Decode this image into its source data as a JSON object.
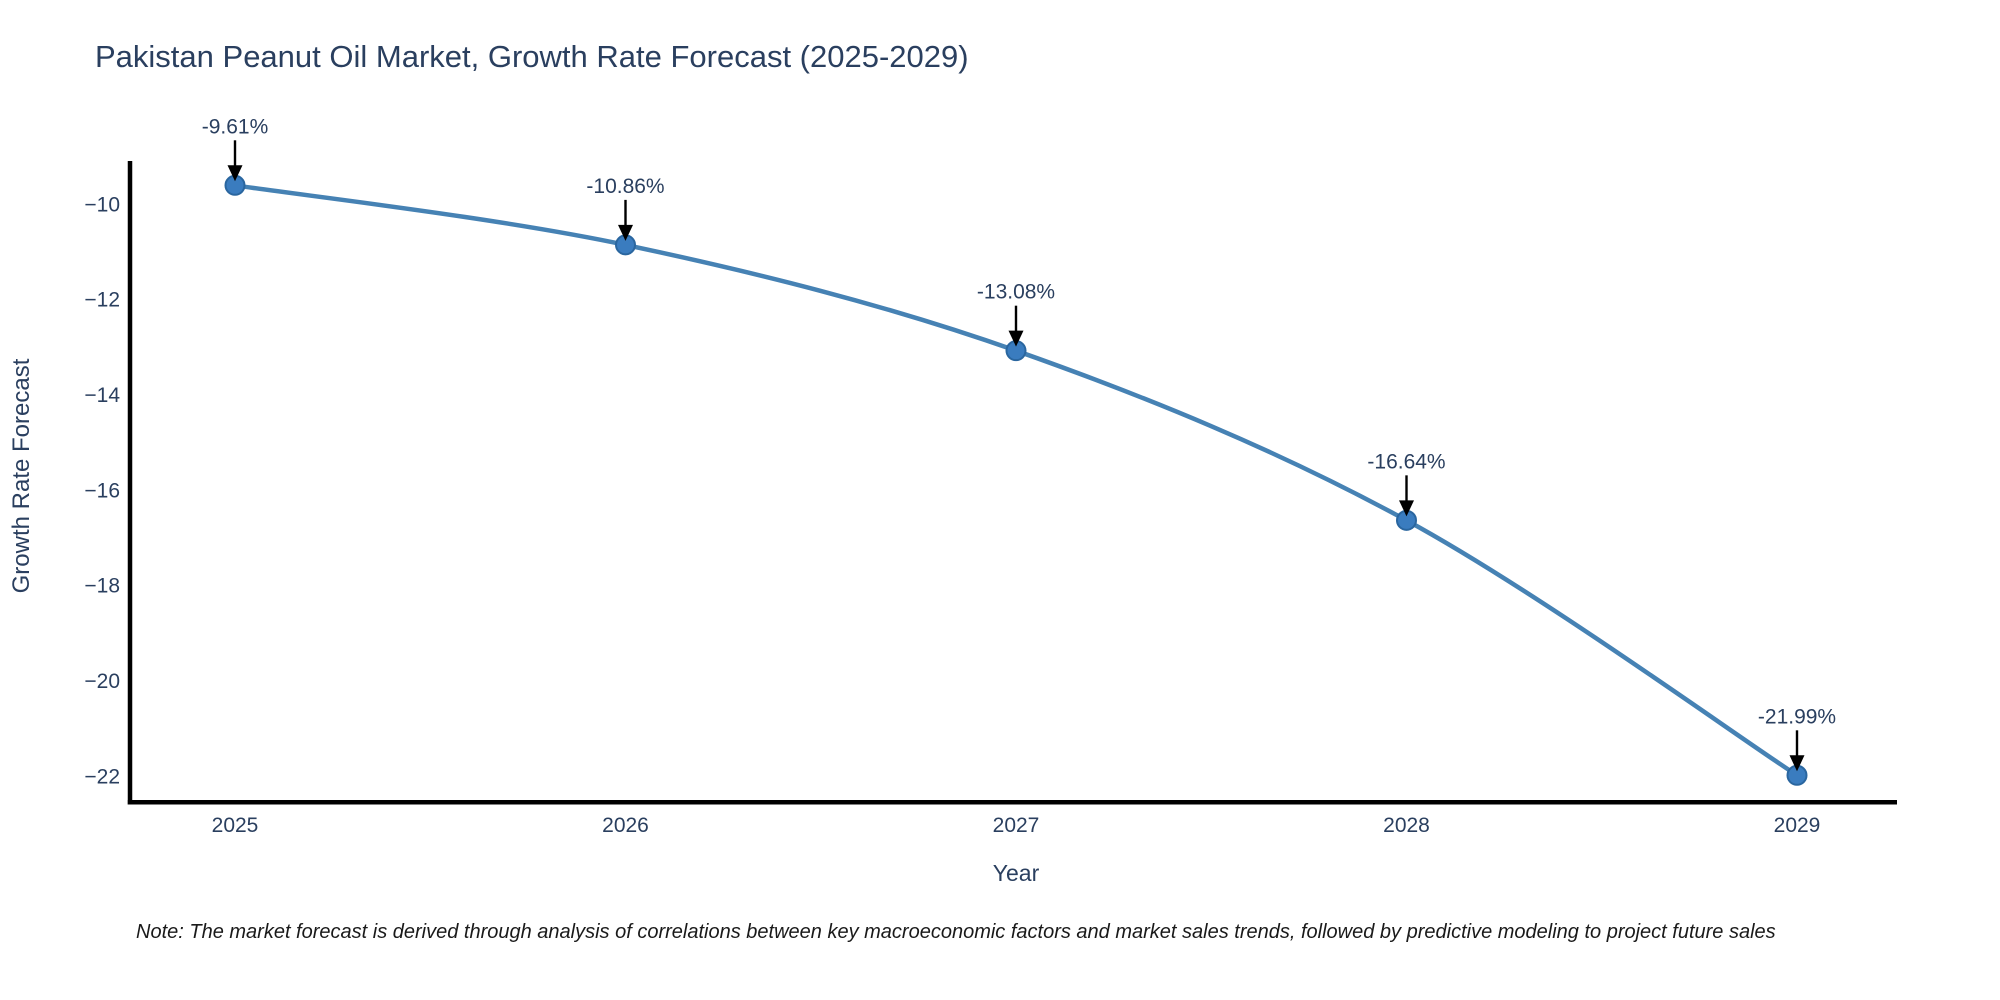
{
  "title": "Pakistan Peanut Oil Market, Growth Rate Forecast (2025-2029)",
  "note": "Note: The market forecast is derived through analysis of correlations between key macroeconomic factors and market sales trends, followed by predictive modeling to project future sales",
  "colors": {
    "text": "#2a3f5f",
    "axis_line": "#000000",
    "series_line": "#4682b4",
    "marker_fill": "#3a7cbf",
    "marker_edge": "#2a669f",
    "arrow": "#000000",
    "background": "#ffffff"
  },
  "chart_data": {
    "type": "line",
    "title": "Pakistan Peanut Oil Market, Growth Rate Forecast (2025-2029)",
    "xlabel": "Year",
    "ylabel": "Growth Rate Forecast",
    "x": [
      2025,
      2026,
      2027,
      2028,
      2029
    ],
    "values": [
      -9.61,
      -10.86,
      -13.08,
      -16.64,
      -21.99
    ],
    "point_labels": [
      "-9.61%",
      "-10.86%",
      "-13.08%",
      "-16.64%",
      "-21.99%"
    ],
    "xticks": {
      "values": [
        2025,
        2026,
        2027,
        2028,
        2029
      ],
      "labels": [
        "2025",
        "2026",
        "2027",
        "2028",
        "2029"
      ]
    },
    "yticks": {
      "values": [
        -10,
        -12,
        -14,
        -16,
        -18,
        -20,
        -22
      ],
      "labels": [
        "−10",
        "−12",
        "−14",
        "−16",
        "−18",
        "−20",
        "−22"
      ]
    },
    "ylim": [
      -22.55,
      -9.1
    ],
    "grid": false,
    "legend": false,
    "line_shape": "spline",
    "annotation_style": "arrow-down-to-point"
  }
}
